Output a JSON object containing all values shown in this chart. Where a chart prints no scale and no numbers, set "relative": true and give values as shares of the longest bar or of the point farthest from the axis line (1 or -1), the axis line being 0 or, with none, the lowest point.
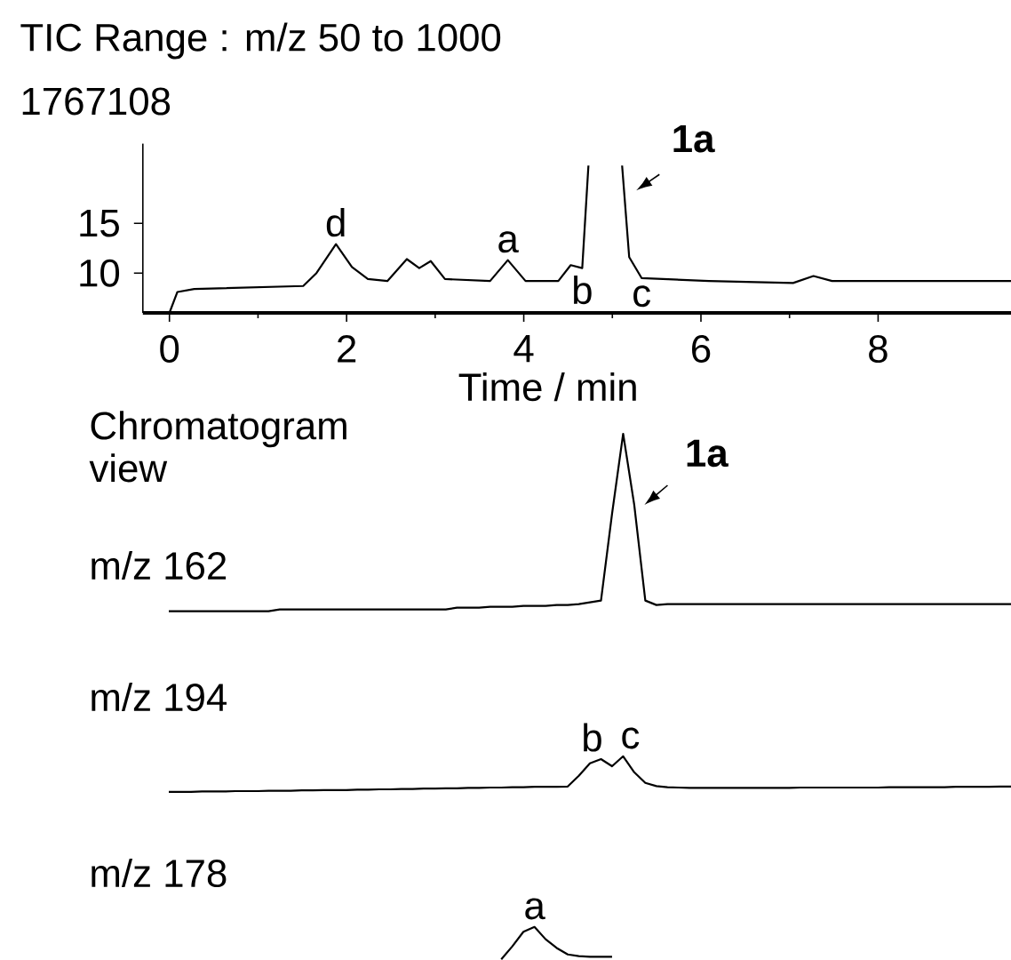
{
  "chart_data": [
    {
      "type": "line",
      "title": "TIC Range : m/z 50 to 1000",
      "subtitle": "1767108",
      "xlabel": "Time / min",
      "x": [
        0,
        0.09,
        0.28,
        1.51,
        1.66,
        1.88,
        2.06,
        2.24,
        2.46,
        2.68,
        2.82,
        2.95,
        3.11,
        3.62,
        3.82,
        4.02,
        4.39,
        4.53,
        4.66,
        4.73,
        4.9,
        5.11,
        5.19,
        5.33,
        6.09,
        7.04,
        7.27,
        7.48,
        9.5
      ],
      "values": [
        6,
        8.1,
        8.4,
        8.7,
        10,
        12.9,
        10.6,
        9.4,
        9.2,
        11.4,
        10.5,
        11.2,
        9.4,
        9.2,
        11.3,
        9.2,
        9.2,
        10.8,
        10.5,
        20.8,
        null,
        20.8,
        11.6,
        9.5,
        9.2,
        9.0,
        9.7,
        9.2,
        9.2
      ],
      "color": "#000000",
      "xlim": [
        -0.3,
        9.5
      ],
      "xticks": [
        0,
        2,
        4,
        6,
        8
      ],
      "ylim": [
        6,
        23
      ],
      "yticks": [
        10,
        15
      ],
      "annotations": [
        {
          "text": "d",
          "x": 1.88,
          "y": 12.9
        },
        {
          "text": "a",
          "x": 3.82,
          "y": 11.3
        },
        {
          "text": "b",
          "x": 4.66,
          "y": 10.5
        },
        {
          "text": "c",
          "x": 5.33,
          "y": 9.5
        },
        {
          "text": "**1a**",
          "x": 5.11,
          "y": 20.8
        }
      ]
    },
    {
      "type": "line",
      "relative": true,
      "title": "m/z 162",
      "categories": [
        null,
        null,
        null,
        null,
        null,
        null,
        null,
        null,
        null,
        null,
        null,
        null,
        null,
        null,
        null,
        null,
        null,
        null,
        null,
        null,
        null,
        null,
        null,
        null,
        null,
        null,
        null,
        null,
        null,
        null,
        null,
        null,
        null,
        null,
        null,
        null,
        null,
        null,
        null,
        null,
        null,
        null,
        null,
        null,
        null,
        null,
        null,
        null,
        null,
        null,
        null,
        null,
        null,
        null,
        null,
        null,
        null,
        null,
        null,
        null,
        null,
        null,
        null,
        null,
        null,
        null,
        null,
        null,
        null,
        null,
        null,
        null,
        null,
        null,
        null,
        null,
        null
      ],
      "values": [
        0,
        0,
        0,
        0,
        0,
        0,
        0,
        0,
        0,
        0,
        0.01,
        0.01,
        0.01,
        0.01,
        0.01,
        0.01,
        0.01,
        0.01,
        0.01,
        0.01,
        0.01,
        0.01,
        0.01,
        0.01,
        0.01,
        0.01,
        0.02,
        0.02,
        0.02,
        0.025,
        0.025,
        0.025,
        0.03,
        0.03,
        0.03,
        0.035,
        0.035,
        0.04,
        0.05,
        0.06,
        0.55,
        1,
        0.6,
        0.06,
        0.035,
        0.04,
        0.04,
        0.04,
        0.04,
        0.04,
        0.04,
        0.04,
        0.04,
        0.04,
        0.04,
        0.04,
        0.04,
        0.04,
        0.04,
        0.04,
        0.04,
        0.04,
        0.04,
        0.04,
        0.04,
        0.04,
        0.04,
        0.04,
        0.04,
        0.04,
        0.04,
        0.04,
        0.04,
        0.04,
        0.04,
        0.04,
        0.04
      ],
      "color": "#000000",
      "annotations": [
        "Chromatogram view",
        "**1a**"
      ]
    },
    {
      "type": "line",
      "relative": true,
      "title": "m/z 194",
      "categories": [
        null,
        null,
        null,
        null,
        null,
        null,
        null,
        null,
        null,
        null,
        null,
        null,
        null,
        null,
        null,
        null,
        null,
        null,
        null,
        null,
        null,
        null,
        null,
        null,
        null,
        null,
        null,
        null,
        null,
        null,
        null,
        null,
        null,
        null,
        null,
        null,
        null,
        null,
        null,
        null,
        null,
        null,
        null,
        null,
        null,
        null,
        null,
        null,
        null,
        null,
        null,
        null,
        null,
        null,
        null,
        null,
        null,
        null,
        null,
        null,
        null,
        null,
        null,
        null,
        null,
        null,
        null,
        null,
        null,
        null,
        null,
        null,
        null,
        null,
        null,
        null,
        null
      ],
      "values": [
        0,
        0,
        0,
        0.01,
        0.01,
        0.01,
        0.02,
        0.02,
        0.02,
        0.03,
        0.03,
        0.03,
        0.04,
        0.04,
        0.05,
        0.05,
        0.05,
        0.06,
        0.06,
        0.07,
        0.07,
        0.08,
        0.08,
        0.09,
        0.09,
        0.1,
        0.1,
        0.11,
        0.11,
        0.12,
        0.12,
        0.13,
        0.13,
        0.14,
        0.14,
        0.14,
        0.15,
        0.45,
        0.8,
        0.92,
        0.72,
        1,
        0.55,
        0.25,
        0.16,
        0.13,
        0.12,
        0.11,
        0.11,
        0.11,
        0.11,
        0.11,
        0.11,
        0.11,
        0.11,
        0.11,
        0.11,
        0.12,
        0.12,
        0.12,
        0.12,
        0.12,
        0.12,
        0.12,
        0.12,
        0.13,
        0.13,
        0.13,
        0.13,
        0.13,
        0.13,
        0.14,
        0.14,
        0.14,
        0.14,
        0.15,
        0.15
      ],
      "color": "#000000",
      "annotations": [
        {
          "text": "b",
          "y": 0.92
        },
        {
          "text": "c",
          "y": 1
        }
      ]
    },
    {
      "type": "line",
      "relative": true,
      "title": "m/z 178",
      "categories": [
        null,
        null,
        null,
        null,
        null,
        null,
        null,
        null,
        null,
        null,
        null,
        null,
        null,
        null,
        null,
        null,
        null,
        null,
        null,
        null,
        null,
        null,
        null,
        null,
        null,
        null,
        null,
        null,
        null,
        null,
        null,
        null,
        null,
        null,
        null,
        null,
        null,
        null,
        null,
        null,
        null,
        null,
        null,
        null,
        null,
        null,
        null,
        null,
        null,
        null,
        null,
        null,
        null,
        null,
        null,
        null,
        null,
        null,
        null,
        null,
        null,
        null,
        null,
        null,
        null,
        null,
        null,
        null,
        null,
        null,
        null,
        null,
        null,
        null,
        null,
        null,
        null
      ],
      "values": [
        null,
        null,
        null,
        null,
        null,
        null,
        null,
        null,
        null,
        null,
        null,
        null,
        null,
        null,
        null,
        null,
        null,
        null,
        null,
        null,
        null,
        null,
        null,
        null,
        null,
        null,
        null,
        null,
        null,
        null,
        0,
        0.4,
        0.85,
        1,
        0.62,
        0.35,
        0.15,
        0.1,
        0.08,
        0.08,
        0.08,
        null,
        null,
        null,
        null,
        null,
        null,
        null,
        null,
        null,
        null,
        null,
        null,
        null,
        null,
        null,
        null,
        null,
        null,
        null,
        null,
        null,
        null,
        null,
        null,
        null,
        null,
        null,
        null,
        null,
        null,
        null,
        null,
        null,
        null,
        null,
        null
      ],
      "color": "#000000",
      "annotations": [
        {
          "text": "a",
          "y": 1
        }
      ]
    }
  ]
}
